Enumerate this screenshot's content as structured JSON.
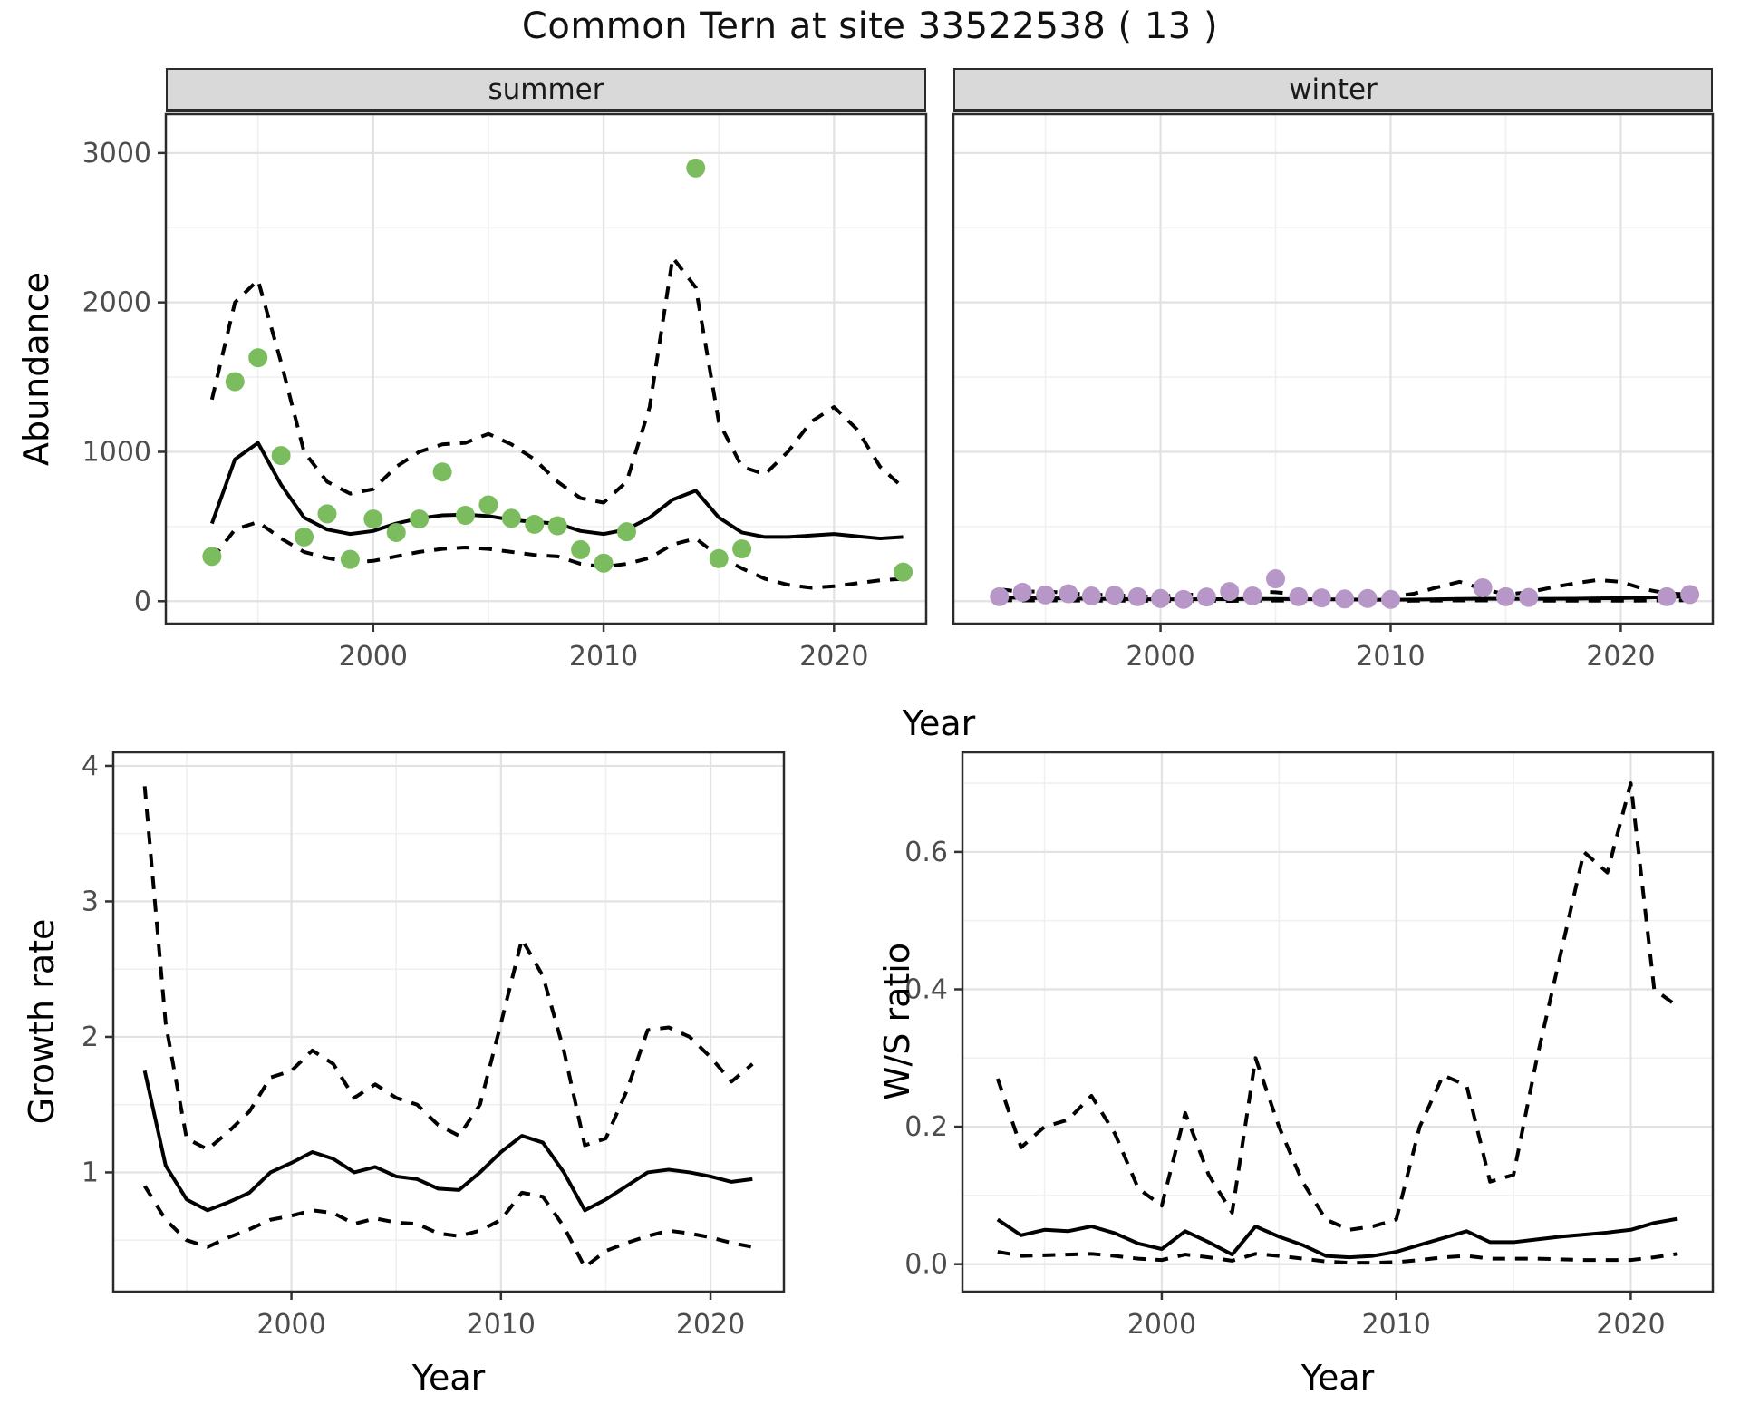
{
  "title": "Common Tern at site 33522538 ( 13 )",
  "facet_labels": {
    "summer": "summer",
    "winter": "winter"
  },
  "axis_titles": {
    "top_y": "Abundance",
    "top_x": "Year",
    "growth_y": "Growth rate",
    "growth_x": "Year",
    "ws_y": "W/S ratio",
    "ws_x": "Year"
  },
  "colors": {
    "summer_point": "#7abc5e",
    "winter_point": "#b797c7",
    "line": "#000000",
    "strip_bg": "#d9d9d9",
    "grid_major": "#e2e2e2",
    "grid_minor": "#f0f0f0",
    "axis_text": "#4d4d4d",
    "panel_border": "#2b2b2b"
  },
  "chart_data": [
    {
      "id": "abundance-summer",
      "type": "line",
      "facet": "summer",
      "ylabel": "Abundance",
      "xlabel": "Year",
      "xlim": [
        1991,
        2024
      ],
      "ylim": [
        -150,
        3260
      ],
      "x_ticks": [
        2000,
        2010,
        2020
      ],
      "x_tick_labels": [
        "2000",
        "2010",
        "2020"
      ],
      "x_minor": [
        1995,
        2005,
        2015
      ],
      "y_ticks": [
        0,
        1000,
        2000,
        3000
      ],
      "y_tick_labels": [
        "0",
        "1000",
        "2000",
        "3000"
      ],
      "y_minor": [
        500,
        1500,
        2500
      ],
      "years": [
        1993,
        1994,
        1995,
        1996,
        1997,
        1998,
        1999,
        2000,
        2001,
        2002,
        2003,
        2004,
        2005,
        2006,
        2007,
        2008,
        2009,
        2010,
        2011,
        2012,
        2013,
        2014,
        2015,
        2016,
        2017,
        2018,
        2019,
        2020,
        2021,
        2022,
        2023
      ],
      "series": [
        {
          "name": "model fit",
          "style": "solid",
          "values": [
            520,
            950,
            1060,
            780,
            560,
            480,
            450,
            470,
            520,
            555,
            575,
            580,
            570,
            545,
            530,
            520,
            470,
            450,
            480,
            560,
            680,
            740,
            560,
            460,
            430,
            430,
            440,
            450,
            435,
            420,
            430
          ]
        },
        {
          "name": "upper 95% CI",
          "style": "dashed",
          "values": [
            1350,
            2000,
            2150,
            1600,
            1000,
            800,
            720,
            750,
            900,
            1000,
            1050,
            1060,
            1120,
            1050,
            950,
            800,
            690,
            660,
            800,
            1300,
            2300,
            2100,
            1200,
            900,
            850,
            1000,
            1200,
            1300,
            1150,
            900,
            760
          ]
        },
        {
          "name": "lower 95% CI",
          "style": "dashed",
          "values": [
            280,
            480,
            530,
            420,
            330,
            290,
            260,
            270,
            300,
            330,
            350,
            360,
            350,
            330,
            310,
            300,
            250,
            230,
            250,
            290,
            380,
            420,
            300,
            220,
            150,
            110,
            90,
            100,
            120,
            140,
            150
          ]
        }
      ],
      "points": {
        "name": "observed summer abundance",
        "color_key": "summer_point",
        "years": [
          1993,
          1994,
          1995,
          1996,
          1997,
          1998,
          1999,
          2000,
          2001,
          2002,
          2003,
          2004,
          2005,
          2006,
          2007,
          2008,
          2009,
          2010,
          2011,
          2014,
          2015,
          2016,
          2023
        ],
        "values": [
          300,
          1470,
          1630,
          975,
          430,
          585,
          280,
          550,
          460,
          550,
          865,
          575,
          645,
          555,
          515,
          505,
          345,
          255,
          465,
          2900,
          285,
          350,
          195
        ]
      }
    },
    {
      "id": "abundance-winter",
      "type": "line",
      "facet": "winter",
      "ylabel": "Abundance",
      "xlabel": "Year",
      "xlim": [
        1991,
        2024
      ],
      "ylim": [
        -150,
        3260
      ],
      "x_ticks": [
        2000,
        2010,
        2020
      ],
      "x_tick_labels": [
        "2000",
        "2010",
        "2020"
      ],
      "x_minor": [
        1995,
        2005,
        2015
      ],
      "y_ticks": [
        0,
        1000,
        2000,
        3000
      ],
      "y_tick_labels": [],
      "y_minor": [
        500,
        1500,
        2500
      ],
      "years": [
        1993,
        1994,
        1995,
        1996,
        1997,
        1998,
        1999,
        2000,
        2001,
        2002,
        2003,
        2004,
        2005,
        2006,
        2007,
        2008,
        2009,
        2010,
        2011,
        2012,
        2013,
        2014,
        2015,
        2016,
        2017,
        2018,
        2019,
        2020,
        2021,
        2022,
        2023
      ],
      "series": [
        {
          "name": "model fit",
          "style": "solid",
          "values": [
            25,
            22,
            20,
            18,
            16,
            15,
            14,
            13,
            13,
            14,
            14,
            15,
            15,
            14,
            13,
            12,
            10,
            10,
            11,
            13,
            15,
            17,
            16,
            15,
            16,
            17,
            19,
            21,
            24,
            28,
            32
          ]
        },
        {
          "name": "upper 95% CI",
          "style": "dashed",
          "values": [
            80,
            62,
            68,
            52,
            45,
            40,
            34,
            30,
            46,
            40,
            30,
            66,
            60,
            45,
            30,
            25,
            25,
            30,
            50,
            92,
            130,
            82,
            46,
            60,
            92,
            120,
            142,
            130,
            82,
            52,
            46
          ]
        },
        {
          "name": "lower 95% CI",
          "style": "dashed",
          "values": [
            6,
            5,
            5,
            4,
            4,
            3,
            3,
            2,
            3,
            3,
            2,
            4,
            4,
            3,
            2,
            2,
            2,
            2,
            3,
            4,
            5,
            5,
            4,
            3,
            3,
            3,
            3,
            3,
            4,
            5,
            6
          ]
        }
      ],
      "points": {
        "name": "observed winter abundance",
        "color_key": "winter_point",
        "years": [
          1993,
          1994,
          1995,
          1996,
          1997,
          1998,
          1999,
          2000,
          2001,
          2002,
          2003,
          2004,
          2005,
          2006,
          2007,
          2008,
          2009,
          2010,
          2014,
          2015,
          2016,
          2022,
          2023
        ],
        "values": [
          30,
          60,
          42,
          50,
          35,
          40,
          30,
          18,
          12,
          28,
          65,
          35,
          150,
          30,
          22,
          15,
          18,
          12,
          90,
          30,
          25,
          30,
          45
        ]
      }
    },
    {
      "id": "growth-rate",
      "type": "line",
      "facet": null,
      "ylabel": "Growth rate",
      "xlabel": "Year",
      "xlim": [
        1991.5,
        2023.5
      ],
      "ylim": [
        0.12,
        4.1
      ],
      "x_ticks": [
        2000,
        2010,
        2020
      ],
      "x_tick_labels": [
        "2000",
        "2010",
        "2020"
      ],
      "x_minor": [
        1995,
        2005,
        2015
      ],
      "y_ticks": [
        1,
        2,
        3,
        4
      ],
      "y_tick_labels": [
        "1",
        "2",
        "3",
        "4"
      ],
      "y_minor": [
        0.5,
        1.5,
        2.5,
        3.5
      ],
      "years": [
        1993,
        1994,
        1995,
        1996,
        1997,
        1998,
        1999,
        2000,
        2001,
        2002,
        2003,
        2004,
        2005,
        2006,
        2007,
        2008,
        2009,
        2010,
        2011,
        2012,
        2013,
        2014,
        2015,
        2016,
        2017,
        2018,
        2019,
        2020,
        2021,
        2022
      ],
      "series": [
        {
          "name": "model fit",
          "style": "solid",
          "values": [
            1.75,
            1.05,
            0.8,
            0.72,
            0.78,
            0.85,
            1.0,
            1.07,
            1.15,
            1.1,
            1.0,
            1.04,
            0.97,
            0.95,
            0.88,
            0.87,
            1.0,
            1.15,
            1.27,
            1.22,
            1.0,
            0.72,
            0.8,
            0.9,
            1.0,
            1.02,
            1.0,
            0.97,
            0.93,
            0.95
          ]
        },
        {
          "name": "upper 95% CI",
          "style": "dashed",
          "values": [
            3.85,
            2.1,
            1.25,
            1.17,
            1.3,
            1.45,
            1.7,
            1.75,
            1.9,
            1.8,
            1.55,
            1.65,
            1.55,
            1.5,
            1.35,
            1.27,
            1.5,
            2.1,
            2.72,
            2.45,
            1.9,
            1.2,
            1.25,
            1.6,
            2.05,
            2.07,
            2.0,
            1.85,
            1.67,
            1.8
          ]
        },
        {
          "name": "lower 95% CI",
          "style": "dashed",
          "values": [
            0.9,
            0.65,
            0.5,
            0.45,
            0.52,
            0.58,
            0.65,
            0.68,
            0.72,
            0.7,
            0.62,
            0.66,
            0.63,
            0.62,
            0.55,
            0.53,
            0.57,
            0.65,
            0.85,
            0.82,
            0.6,
            0.3,
            0.42,
            0.48,
            0.53,
            0.57,
            0.55,
            0.52,
            0.48,
            0.45
          ]
        }
      ],
      "points": null
    },
    {
      "id": "ws-ratio",
      "type": "line",
      "facet": null,
      "ylabel": "W/S ratio",
      "xlabel": "Year",
      "xlim": [
        1991.5,
        2023.5
      ],
      "ylim": [
        -0.04,
        0.745
      ],
      "x_ticks": [
        2000,
        2010,
        2020
      ],
      "x_tick_labels": [
        "2000",
        "2010",
        "2020"
      ],
      "x_minor": [
        1995,
        2005,
        2015
      ],
      "y_ticks": [
        0.0,
        0.2,
        0.4,
        0.6
      ],
      "y_tick_labels": [
        "0.0",
        "0.2",
        "0.4",
        "0.6"
      ],
      "y_minor": [
        0.1,
        0.3,
        0.5,
        0.7
      ],
      "years": [
        1993,
        1994,
        1995,
        1996,
        1997,
        1998,
        1999,
        2000,
        2001,
        2002,
        2003,
        2004,
        2005,
        2006,
        2007,
        2008,
        2009,
        2010,
        2011,
        2012,
        2013,
        2014,
        2015,
        2016,
        2017,
        2018,
        2019,
        2020,
        2021,
        2022
      ],
      "series": [
        {
          "name": "model fit",
          "style": "solid",
          "values": [
            0.065,
            0.042,
            0.05,
            0.048,
            0.055,
            0.045,
            0.03,
            0.022,
            0.048,
            0.032,
            0.014,
            0.055,
            0.04,
            0.028,
            0.012,
            0.01,
            0.012,
            0.018,
            0.028,
            0.038,
            0.048,
            0.032,
            0.032,
            0.036,
            0.04,
            0.043,
            0.046,
            0.05,
            0.06,
            0.066
          ]
        },
        {
          "name": "upper 95% CI",
          "style": "dashed",
          "values": [
            0.27,
            0.17,
            0.2,
            0.21,
            0.245,
            0.19,
            0.11,
            0.085,
            0.22,
            0.13,
            0.075,
            0.3,
            0.2,
            0.12,
            0.065,
            0.05,
            0.055,
            0.065,
            0.2,
            0.275,
            0.26,
            0.12,
            0.13,
            0.3,
            0.45,
            0.6,
            0.57,
            0.7,
            0.4,
            0.375
          ]
        },
        {
          "name": "lower 95% CI",
          "style": "dashed",
          "values": [
            0.018,
            0.012,
            0.013,
            0.014,
            0.015,
            0.012,
            0.008,
            0.006,
            0.014,
            0.01,
            0.005,
            0.015,
            0.012,
            0.008,
            0.004,
            0.002,
            0.002,
            0.003,
            0.006,
            0.01,
            0.012,
            0.008,
            0.008,
            0.008,
            0.007,
            0.006,
            0.006,
            0.006,
            0.01,
            0.015
          ]
        }
      ],
      "points": null
    }
  ]
}
